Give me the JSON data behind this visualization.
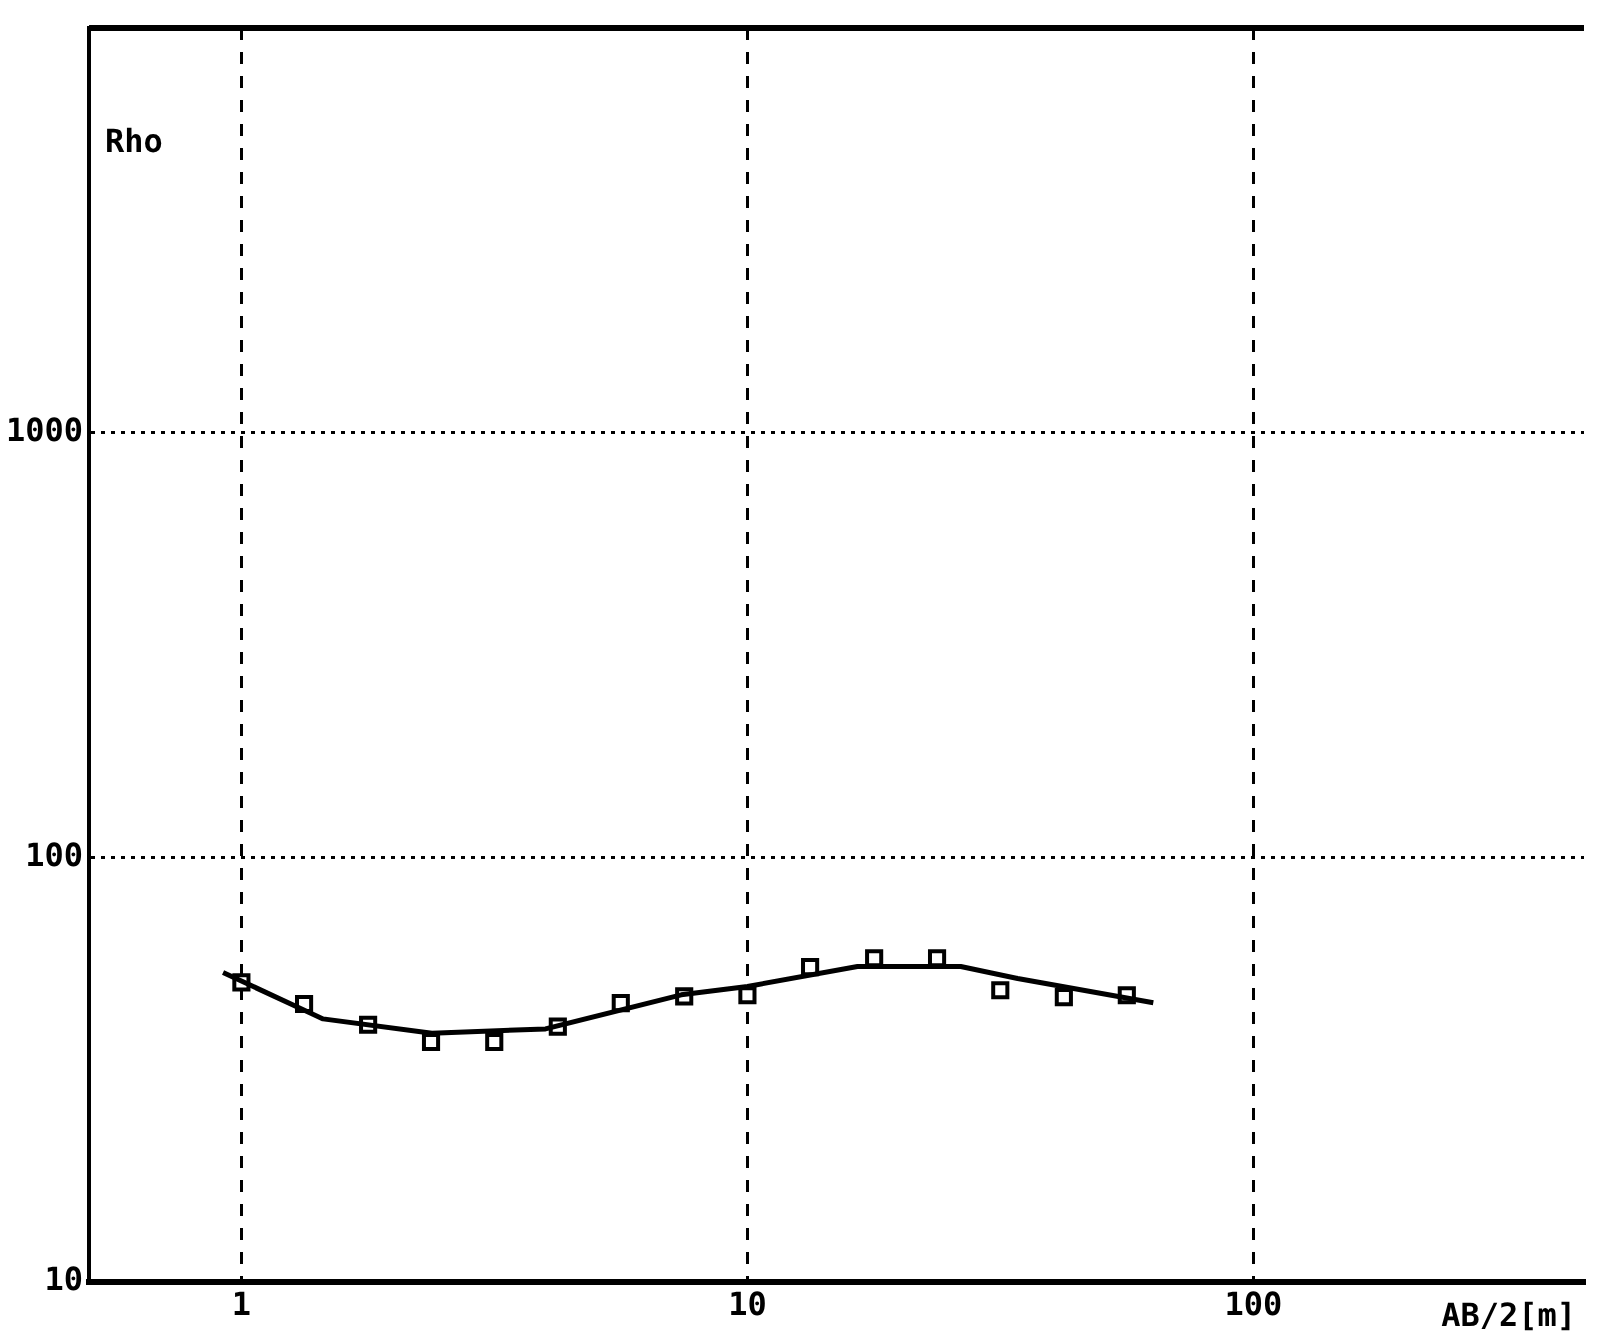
{
  "chart_data": {
    "type": "scatter",
    "xlabel": "AB/2[m]",
    "ylabel": "Rho",
    "log": "xy",
    "grid": true,
    "legend": false,
    "xlim": [
      0.5,
      450
    ],
    "xticks": [
      1,
      10,
      100
    ],
    "ylim": [
      10,
      9000
    ],
    "yticks": [
      10,
      100,
      1000
    ],
    "series": [
      {
        "type": "line",
        "color": "#000000",
        "marker": "none",
        "line_style": "solid",
        "x": [
          0.92,
          1.45,
          2.38,
          3.99,
          7.4,
          10,
          16.5,
          26.4,
          34.2,
          63.4
        ],
        "values": [
          53.5,
          41.6,
          38.5,
          39.4,
          47.4,
          49.6,
          55.3,
          55.3,
          51.8,
          45.4
        ]
      },
      {
        "color": "#000000",
        "marker": "square",
        "x": [
          1,
          1.33,
          1.78,
          2.37,
          3.16,
          4.22,
          5.62,
          7.5,
          10,
          13.3,
          17.8,
          23.7,
          31.6,
          42.2,
          56.2
        ],
        "values": [
          50.7,
          45.1,
          40.3,
          36.7,
          36.7,
          39.9,
          45.3,
          47,
          47.3,
          55.1,
          57.8,
          57.8,
          48.6,
          46.8,
          47.3
        ]
      }
    ]
  }
}
